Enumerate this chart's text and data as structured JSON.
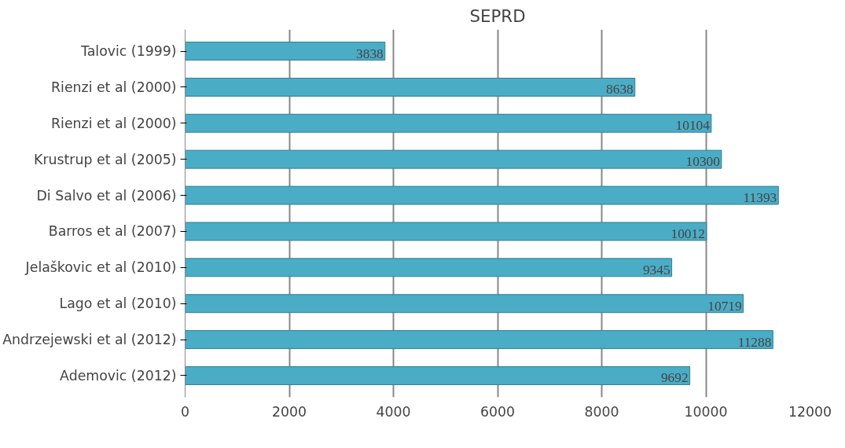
{
  "chart_data": {
    "type": "bar",
    "orientation": "horizontal",
    "title": "SEPRD",
    "categories": [
      "Talovic (1999)",
      "Rienzi et al (2000)",
      "Rienzi et al (2000)",
      "Krustrup et al (2005)",
      "Di Salvo et al (2006)",
      "Barros et al (2007)",
      "Jelaškovic et al (2010)",
      "Lago et al (2010)",
      "Andrzejewski et al (2012)",
      "Ademovic (2012)"
    ],
    "values": [
      3838,
      8638,
      10104,
      10300,
      11393,
      10012,
      9345,
      10719,
      11288,
      9692
    ],
    "color": "#4bacc6",
    "xlim": [
      0,
      12000
    ],
    "xticks": [
      0,
      2000,
      4000,
      6000,
      8000,
      10000,
      12000
    ],
    "grid": "x",
    "data_labels": true
  }
}
